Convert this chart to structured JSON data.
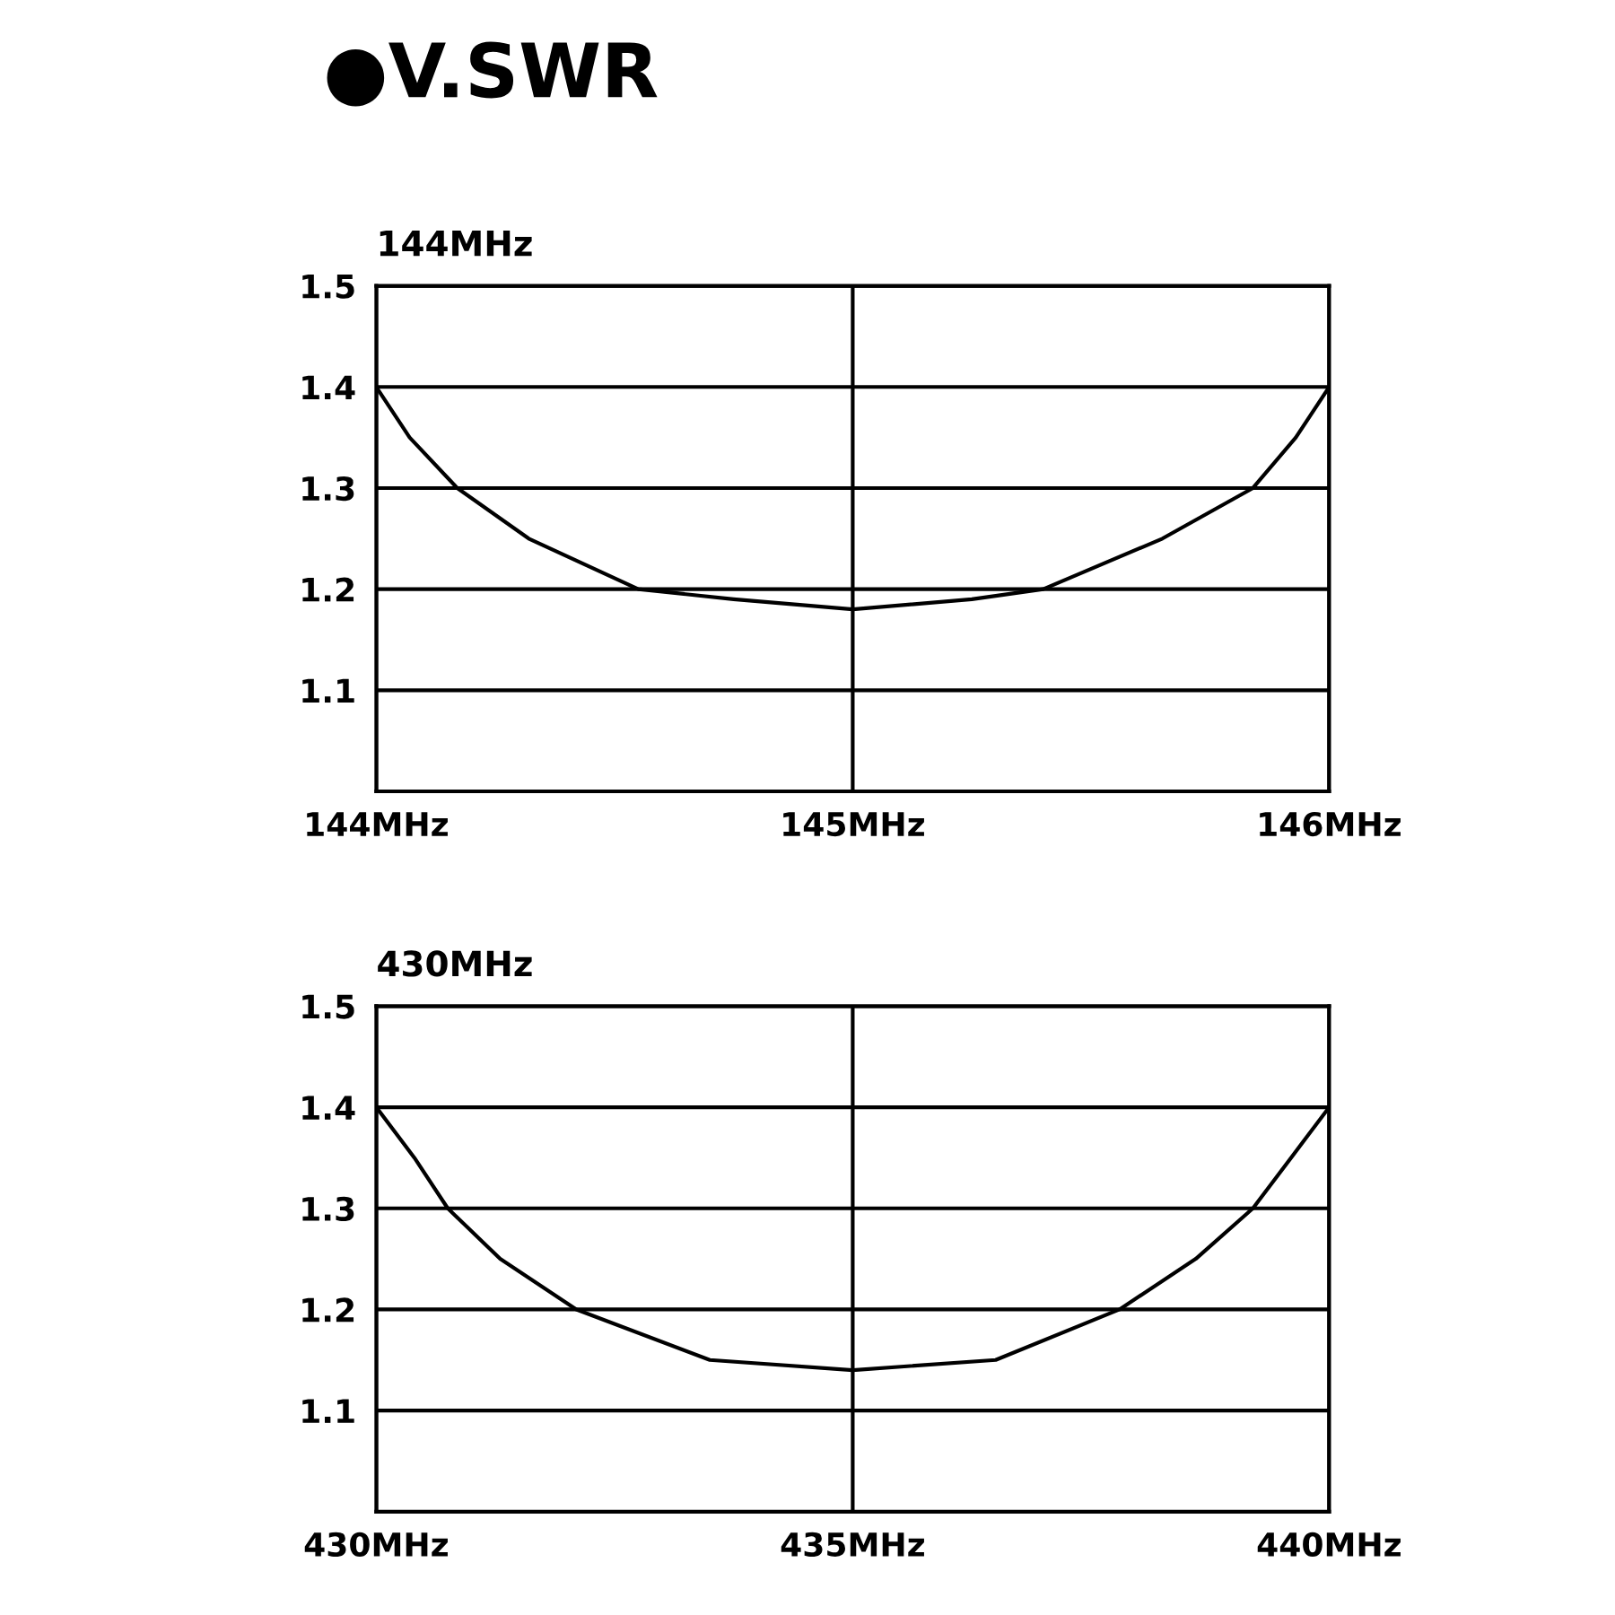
{
  "chart_data": [
    {
      "type": "line",
      "title": "●V.SWR",
      "subtitle": "144MHz",
      "color": "#000000",
      "x": [
        144,
        144.07,
        144.17,
        144.32,
        144.55,
        144.75,
        145,
        145.25,
        145.4,
        145.65,
        145.84,
        145.93,
        146
      ],
      "values": [
        1.4,
        1.35,
        1.3,
        1.25,
        1.2,
        1.19,
        1.18,
        1.19,
        1.2,
        1.25,
        1.3,
        1.35,
        1.4
      ],
      "xlim": [
        144,
        146
      ],
      "xticks": [
        {
          "value": 144,
          "label": "144MHz"
        },
        {
          "value": 145,
          "label": "145MHz"
        },
        {
          "value": 146,
          "label": "146MHz"
        }
      ],
      "ylim": [
        1.0,
        1.5
      ],
      "yticks": [
        1.1,
        1.2,
        1.3,
        1.4,
        1.5
      ],
      "grid": true
    },
    {
      "type": "line",
      "title": "430MHz",
      "color": "#000000",
      "x": [
        430,
        430.4,
        430.75,
        431.3,
        432.1,
        433.5,
        435,
        436.5,
        437.8,
        438.6,
        439.2,
        439.6,
        440
      ],
      "values": [
        1.4,
        1.35,
        1.3,
        1.25,
        1.2,
        1.15,
        1.14,
        1.15,
        1.2,
        1.25,
        1.3,
        1.35,
        1.4
      ],
      "xlim": [
        430,
        440
      ],
      "xticks": [
        {
          "value": 430,
          "label": "430MHz"
        },
        {
          "value": 435,
          "label": "435MHz"
        },
        {
          "value": 440,
          "label": "440MHz"
        }
      ],
      "ylim": [
        1.0,
        1.5
      ],
      "yticks": [
        1.1,
        1.2,
        1.3,
        1.4,
        1.5
      ],
      "grid": true
    }
  ]
}
